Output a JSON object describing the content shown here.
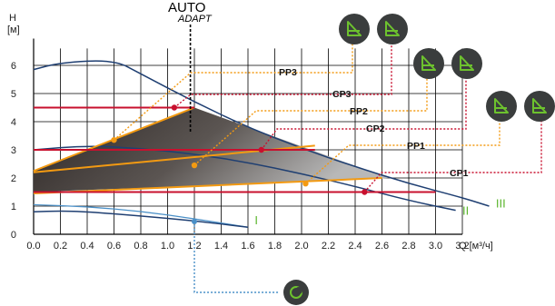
{
  "chart_data": {
    "type": "line",
    "title": "",
    "xlabel": "Q [м³/ч]",
    "ylabel": "H [м]",
    "xlim": [
      0,
      3.3
    ],
    "ylim": [
      0,
      7
    ],
    "x_ticks": [
      "0.0",
      "0.2",
      "0.4",
      "0.6",
      "0.8",
      "1.0",
      "1.2",
      "1.4",
      "1.6",
      "1.8",
      "2.0",
      "2.2",
      "2.4",
      "2.6",
      "2.8",
      "3.0",
      "3.2"
    ],
    "y_ticks": [
      "0",
      "1",
      "2",
      "3",
      "4",
      "5",
      "6"
    ],
    "grid": true,
    "mode_labels": {
      "auto": "AUTO",
      "adapt": "ADAPT"
    },
    "speed_labels": [
      "I",
      "II",
      "III"
    ],
    "speed_curves": [
      {
        "name": "I",
        "points": [
          [
            0.0,
            0.8
          ],
          [
            0.2,
            0.83
          ],
          [
            0.4,
            0.8
          ],
          [
            0.8,
            0.65
          ],
          [
            1.2,
            0.48
          ],
          [
            1.6,
            0.25
          ]
        ]
      },
      {
        "name": "II",
        "points": [
          [
            0.0,
            3.0
          ],
          [
            0.4,
            3.15
          ],
          [
            0.8,
            3.05
          ],
          [
            1.2,
            2.85
          ],
          [
            1.6,
            2.55
          ],
          [
            2.0,
            2.15
          ],
          [
            2.4,
            1.7
          ],
          [
            2.8,
            1.2
          ],
          [
            3.15,
            0.85
          ]
        ]
      },
      {
        "name": "III",
        "points": [
          [
            0.0,
            5.85
          ],
          [
            0.2,
            6.1
          ],
          [
            0.6,
            6.2
          ],
          [
            0.8,
            5.7
          ],
          [
            1.2,
            4.7
          ],
          [
            1.6,
            3.8
          ],
          [
            2.0,
            3.05
          ],
          [
            2.4,
            2.4
          ],
          [
            2.8,
            1.8
          ],
          [
            3.2,
            1.3
          ],
          [
            3.4,
            1.0
          ]
        ]
      }
    ],
    "night_curve": {
      "points": [
        [
          0.0,
          1.05
        ],
        [
          0.4,
          0.98
        ],
        [
          0.8,
          0.82
        ],
        [
          1.2,
          0.55
        ],
        [
          1.6,
          0.25
        ]
      ]
    },
    "auto_line_x": 1.17,
    "auto_region": [
      [
        0.0,
        2.25
      ],
      [
        1.2,
        4.5
      ],
      [
        2.65,
        2.0
      ],
      [
        2.5,
        1.95
      ],
      [
        0.0,
        1.5
      ]
    ],
    "proportional_lines": [
      {
        "name": "PP1",
        "points": [
          [
            0.0,
            1.45
          ],
          [
            2.6,
            2.0
          ]
        ],
        "marker": [
          2.03,
          1.8
        ]
      },
      {
        "name": "PP2",
        "points": [
          [
            0.0,
            2.2
          ],
          [
            2.1,
            3.15
          ]
        ],
        "marker": [
          1.2,
          2.45
        ]
      },
      {
        "name": "PP3",
        "points": [
          [
            0.0,
            2.25
          ],
          [
            1.2,
            4.5
          ]
        ],
        "marker": [
          0.6,
          3.35
        ]
      }
    ],
    "constant_lines": [
      {
        "name": "CP1",
        "points": [
          [
            0.0,
            1.5
          ],
          [
            3.0,
            1.5
          ]
        ],
        "marker": [
          2.47,
          1.5
        ]
      },
      {
        "name": "CP2",
        "points": [
          [
            0.0,
            3.0
          ],
          [
            2.1,
            3.0
          ]
        ],
        "marker": [
          1.7,
          3.0
        ]
      },
      {
        "name": "CP3",
        "points": [
          [
            0.0,
            4.5
          ],
          [
            1.2,
            4.5
          ]
        ],
        "marker": [
          1.05,
          4.5
        ]
      }
    ],
    "callouts": [
      {
        "label": "PP3",
        "icon": "pp-icon",
        "color": "#f39a12"
      },
      {
        "label": "CP3",
        "icon": "cp-icon",
        "color": "#c8102e"
      },
      {
        "label": "PP2",
        "icon": "pp-icon",
        "color": "#f39a12"
      },
      {
        "label": "CP2",
        "icon": "cp-icon",
        "color": "#c8102e"
      },
      {
        "label": "PP1",
        "icon": "pp-icon",
        "color": "#f39a12"
      },
      {
        "label": "CP1",
        "icon": "cp-icon",
        "color": "#c8102e"
      }
    ],
    "night_mode_icon": "moon-sun-icon",
    "colors": {
      "speed_curve": "#1f3f72",
      "night_curve": "#4a90c8",
      "proportional": "#f39a12",
      "constant": "#c8102e",
      "icon_bg": "#3a3d3d",
      "icon_fg": "#6dc22e",
      "region_dark": "#2b2523",
      "region_light": "#a9a9a9"
    }
  }
}
